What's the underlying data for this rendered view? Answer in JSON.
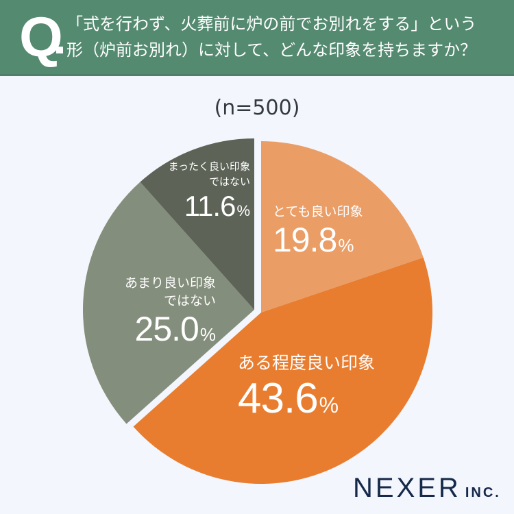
{
  "header": {
    "q_mark": "Q",
    "question_line1": "「式を行わず、火葬前に炉の前でお別れをする」という",
    "question_line2": "形（炉前お別れ）に対して、どんな印象を持ちますか？",
    "bg_color": "#548a70"
  },
  "sample_size": "(n=500)",
  "slices": [
    {
      "label_line1": "とても良い印象",
      "label_line2": "",
      "value": "19.8",
      "unit": "%",
      "color": "#eb9d66"
    },
    {
      "label_line1": "ある程度良い印象",
      "label_line2": "",
      "value": "43.6",
      "unit": "%",
      "color": "#e87d2f"
    },
    {
      "label_line1": "あまり良い印象",
      "label_line2": "ではない",
      "value": "25.0",
      "unit": "%",
      "color": "#848e7c"
    },
    {
      "label_line1": "まったく良い印象",
      "label_line2": "ではない",
      "value": "11.6",
      "unit": "%",
      "color": "#5d6357"
    }
  ],
  "logo": {
    "main": "NEXER",
    "suffix": "INC."
  },
  "chart_data": {
    "type": "pie",
    "title": "「式を行わず、火葬前に炉の前でお別れをする」という形（炉前お別れ）に対して、どんな印象を持ちますか？",
    "subtitle": "(n=500)",
    "categories": [
      "とても良い印象",
      "ある程度良い印象",
      "あまり良い印象ではない",
      "まったく良い印象ではない"
    ],
    "values": [
      19.8,
      43.6,
      25.0,
      11.6
    ],
    "unit": "%",
    "colors": [
      "#eb9d66",
      "#e87d2f",
      "#848e7c",
      "#5d6357"
    ],
    "start_angle": "12 o'clock, clockwise",
    "exploded_groups": [
      [
        "とても良い印象",
        "ある程度良い印象"
      ],
      [
        "あまり良い印象ではない",
        "まったく良い印象ではない"
      ]
    ],
    "legend": "none (labels inside slices)"
  }
}
